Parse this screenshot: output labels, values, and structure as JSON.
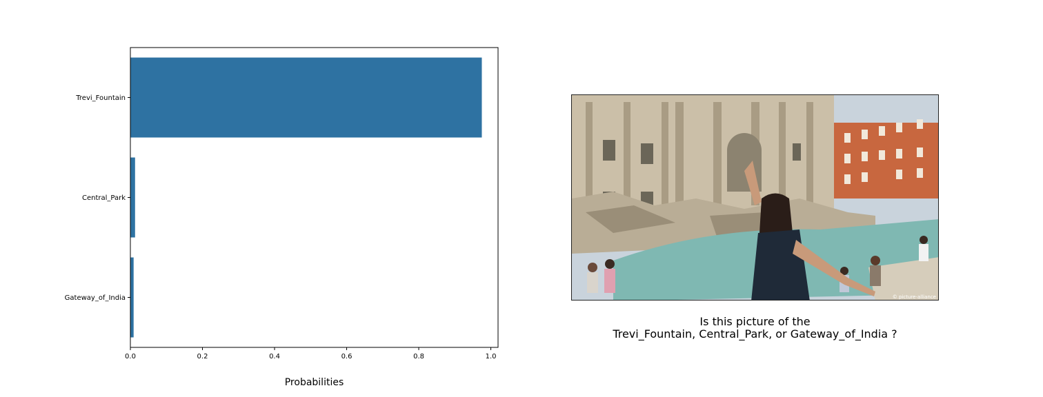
{
  "chart_data": {
    "type": "bar",
    "orientation": "horizontal",
    "categories": [
      "Trevi_Fountain",
      "Central_Park",
      "Gateway_of_India"
    ],
    "values": [
      0.975,
      0.013,
      0.009
    ],
    "xlabel": "Probabilities",
    "ylabel": "",
    "xlim": [
      0,
      1.02
    ],
    "xticks": [
      "0.0",
      "0.2",
      "0.4",
      "0.6",
      "0.8",
      "1.0"
    ],
    "grid": false,
    "bar_color": "#2e72a2"
  },
  "photo": {
    "watermark": "© picture-alliance",
    "sky_color": "#c9d3dc",
    "facade_color": "#cbbfa8",
    "building_color": "#c8673f",
    "water_color": "#7fb8b2"
  },
  "caption": {
    "line1": "Is this picture of the",
    "line2": "Trevi_Fountain, Central_Park, or Gateway_of_India ?"
  }
}
